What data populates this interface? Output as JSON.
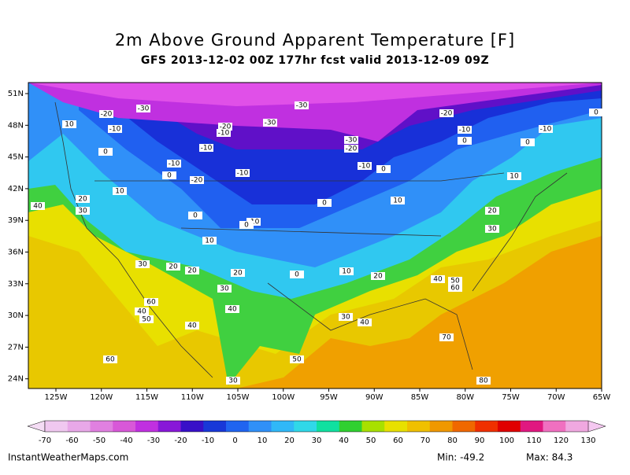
{
  "title": "2m Above Ground Apparent Temperature [F]",
  "subtitle": "GFS 2013-12-02 00Z 177hr fcst valid 2013-12-09 09Z",
  "lat_labels": [
    "51N",
    "48N",
    "45N",
    "42N",
    "39N",
    "36N",
    "33N",
    "30N",
    "27N",
    "24N"
  ],
  "lon_labels": [
    "125W",
    "120W",
    "115W",
    "110W",
    "105W",
    "100W",
    "95W",
    "90W",
    "85W",
    "80W",
    "75W",
    "70W",
    "65W"
  ],
  "contour_labels": [
    -20,
    -30,
    -30,
    -20,
    0,
    10,
    -10,
    -30,
    -20,
    -10,
    -10,
    -10,
    -30,
    -20,
    0,
    0,
    0,
    -10,
    -10,
    -10,
    0,
    0,
    -10,
    -20,
    10,
    10,
    20,
    40,
    30,
    0,
    10,
    20,
    0,
    -10,
    0,
    30,
    10,
    30,
    20,
    20,
    20,
    0,
    10,
    20,
    40,
    50,
    60,
    30,
    60,
    40,
    50,
    40,
    30,
    40,
    40,
    70,
    60,
    50,
    30,
    80
  ],
  "colorbar": {
    "labels": [
      -70,
      -60,
      -50,
      -40,
      -30,
      -20,
      -10,
      0,
      10,
      20,
      30,
      40,
      50,
      60,
      70,
      80,
      90,
      100,
      110,
      120,
      130
    ],
    "colors": [
      "#f4dcf4",
      "#f0c8f0",
      "#e8a8e8",
      "#e080e0",
      "#d858d8",
      "#c030e0",
      "#8818d8",
      "#3810c8",
      "#1838d8",
      "#2064f0",
      "#3090f8",
      "#30b8f8",
      "#30d8e8",
      "#10e0a0",
      "#30d030",
      "#a8e000",
      "#e8e000",
      "#f0c000",
      "#f09800",
      "#f06800",
      "#f03000",
      "#e00000",
      "#e01880",
      "#f070c0",
      "#f0a8e0",
      "#f4c8f0"
    ]
  },
  "footer": {
    "source": "InstantWeatherMaps.com",
    "min": "Min: -49.2",
    "max": "Max: 84.3"
  }
}
